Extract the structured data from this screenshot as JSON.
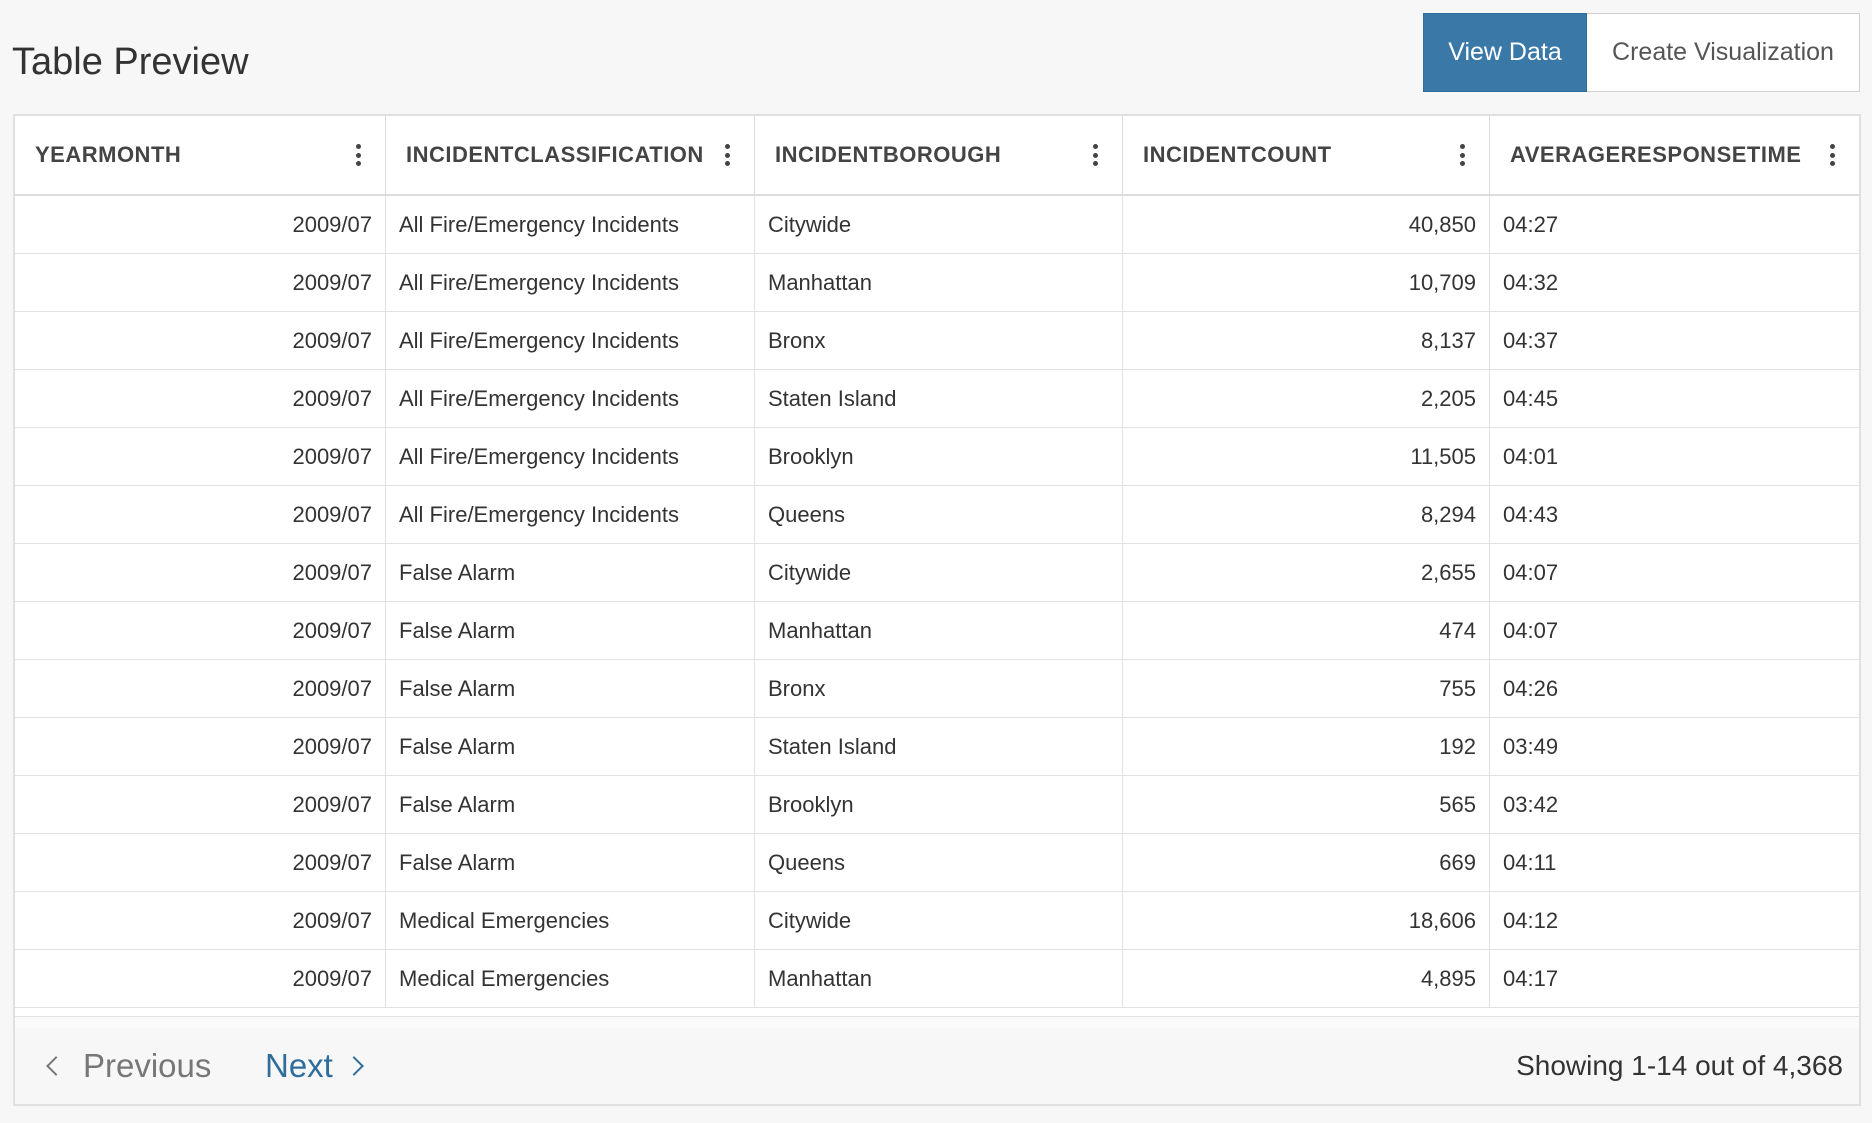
{
  "page": {
    "title": "Table Preview"
  },
  "toolbar": {
    "view_data_label": "View Data",
    "create_visualization_label": "Create Visualization",
    "active_tab": "View Data"
  },
  "colors": {
    "primary": "#3a78a8",
    "link": "#2f6e9c"
  },
  "table": {
    "columns": [
      {
        "label": "YEARMONTH",
        "menu_icon": "kebab-menu-icon"
      },
      {
        "label": "INCIDENTCLASSIFICATION",
        "menu_icon": "kebab-menu-icon"
      },
      {
        "label": "INCIDENTBOROUGH",
        "menu_icon": "kebab-menu-icon"
      },
      {
        "label": "INCIDENTCOUNT",
        "menu_icon": "kebab-menu-icon"
      },
      {
        "label": "AVERAGERESPONSETIME",
        "menu_icon": "kebab-menu-icon"
      }
    ],
    "rows": [
      [
        "2009/07",
        "All Fire/Emergency Incidents",
        "Citywide",
        "40,850",
        "04:27"
      ],
      [
        "2009/07",
        "All Fire/Emergency Incidents",
        "Manhattan",
        "10,709",
        "04:32"
      ],
      [
        "2009/07",
        "All Fire/Emergency Incidents",
        "Bronx",
        "8,137",
        "04:37"
      ],
      [
        "2009/07",
        "All Fire/Emergency Incidents",
        "Staten Island",
        "2,205",
        "04:45"
      ],
      [
        "2009/07",
        "All Fire/Emergency Incidents",
        "Brooklyn",
        "11,505",
        "04:01"
      ],
      [
        "2009/07",
        "All Fire/Emergency Incidents",
        "Queens",
        "8,294",
        "04:43"
      ],
      [
        "2009/07",
        "False Alarm",
        "Citywide",
        "2,655",
        "04:07"
      ],
      [
        "2009/07",
        "False Alarm",
        "Manhattan",
        "474",
        "04:07"
      ],
      [
        "2009/07",
        "False Alarm",
        "Bronx",
        "755",
        "04:26"
      ],
      [
        "2009/07",
        "False Alarm",
        "Staten Island",
        "192",
        "03:49"
      ],
      [
        "2009/07",
        "False Alarm",
        "Brooklyn",
        "565",
        "03:42"
      ],
      [
        "2009/07",
        "False Alarm",
        "Queens",
        "669",
        "04:11"
      ],
      [
        "2009/07",
        "Medical Emergencies",
        "Citywide",
        "18,606",
        "04:12"
      ],
      [
        "2009/07",
        "Medical Emergencies",
        "Manhattan",
        "4,895",
        "04:17"
      ]
    ]
  },
  "pagination": {
    "previous_label": "Previous",
    "next_label": "Next",
    "showing_text": "Showing 1-14 out of 4,368"
  }
}
